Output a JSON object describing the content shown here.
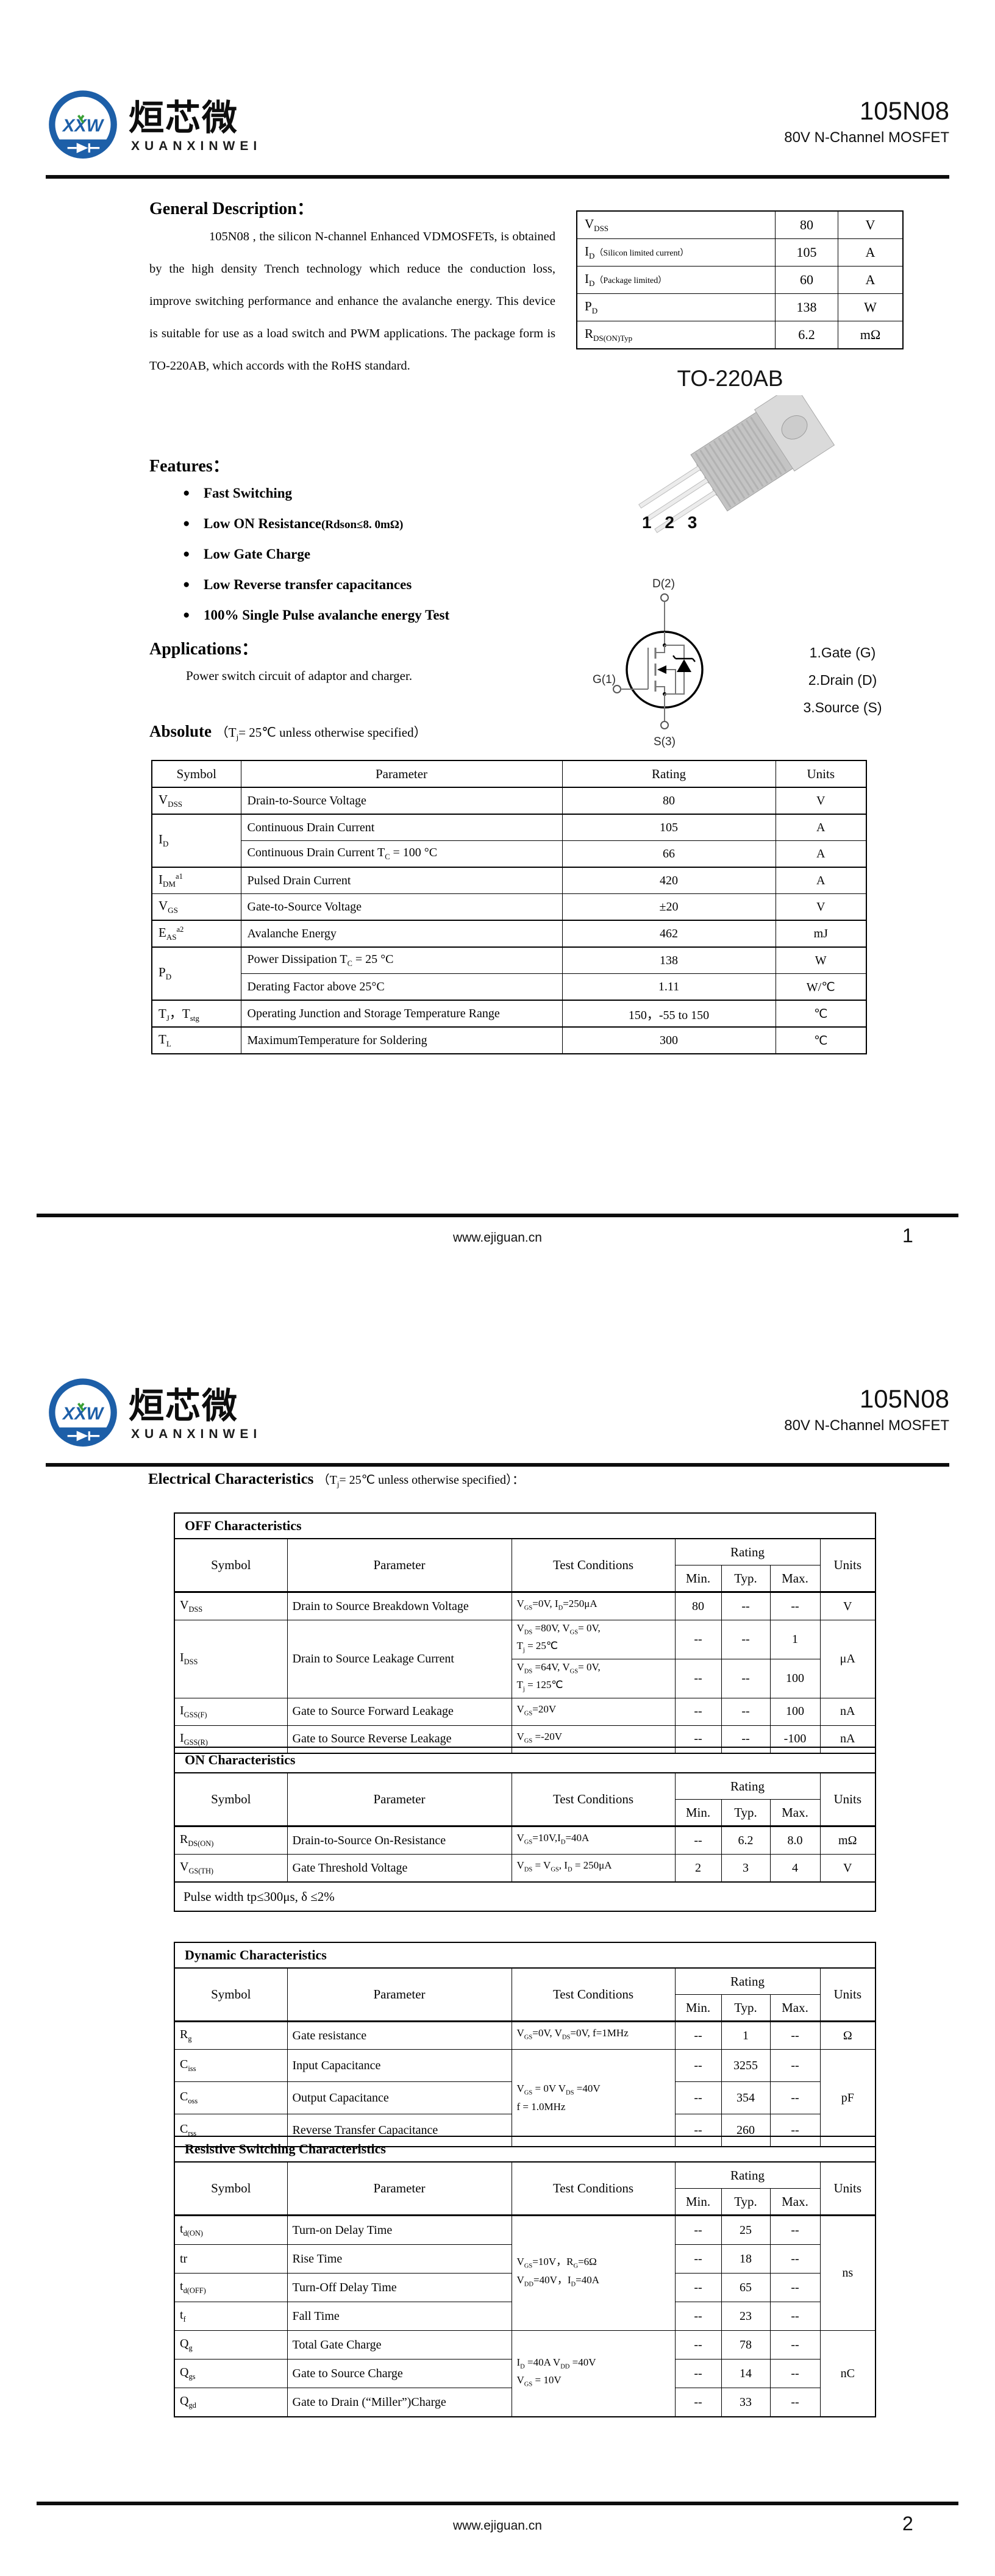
{
  "brand": {
    "monogram": "XXW",
    "name_cn": "烜芯微",
    "name_en": "XUANXINWEI"
  },
  "header": {
    "part_number": "105N08",
    "subtitle": "80V N-Channel MOSFET"
  },
  "footer": {
    "website": "www.ejiguan.cn",
    "page1": "1",
    "page2": "2"
  },
  "page1": {
    "general_description": {
      "title": "General Description：",
      "body": "105N08 , the silicon N-channel Enhanced VDMOSFETs, is obtained by the high density Trench technology which reduce the conduction loss, improve switching performance and enhance the avalanche energy. This device is suitable for use as a load switch and PWM applications. The package form is TO-220AB, which accords with the RoHS standard."
    },
    "features": {
      "title": "Features：",
      "bullet": "●",
      "items": [
        {
          "label": "Fast Switching",
          "note": ""
        },
        {
          "label": "Low ON Resistance",
          "note": "(Rdson≤8. 0mΩ)"
        },
        {
          "label": "Low Gate Charge",
          "note": ""
        },
        {
          "label": "Low Reverse transfer capacitances",
          "note": ""
        },
        {
          "label": "100% Single Pulse avalanche energy Test",
          "note": ""
        }
      ]
    },
    "applications": {
      "title": "Applications：",
      "body": "Power switch circuit of adaptor and charger."
    },
    "absolute_title": {
      "bold": "Absolute",
      "cond": [
        {
          "t": "（T"
        },
        {
          "s": "j"
        },
        {
          "t": "= 25℃  unless otherwise specified）"
        }
      ]
    },
    "summary_table": {
      "rows": [
        {
          "param": [
            {
              "t": "V"
            },
            {
              "s": "DSS"
            }
          ],
          "value": "80",
          "unit": "V"
        },
        {
          "param": [
            {
              "t": "I"
            },
            {
              "s": "D"
            },
            {
              "q": "（Silicon limited current）"
            }
          ],
          "value": "105",
          "unit": "A"
        },
        {
          "param": [
            {
              "t": "I"
            },
            {
              "s": "D"
            },
            {
              "q": "（Package limited）"
            }
          ],
          "value": "60",
          "unit": "A"
        },
        {
          "param": [
            {
              "t": "P"
            },
            {
              "s": "D"
            }
          ],
          "value": "138",
          "unit": "W"
        },
        {
          "param": [
            {
              "t": "R"
            },
            {
              "s": "DS(ON)Typ"
            }
          ],
          "value": "6.2",
          "unit": "mΩ"
        }
      ]
    },
    "package": {
      "name": "TO-220AB",
      "pins": "1 2 3"
    },
    "symbol_diagram": {
      "drain": "D(2)",
      "gate": "G(1)",
      "source": "S(3)",
      "legend": [
        "1.Gate (G)",
        "2.Drain (D)",
        "3.Source (S)"
      ]
    },
    "absolute_table": {
      "headers": {
        "symbol": "Symbol",
        "parameter": "Parameter",
        "rating": "Rating",
        "units": "Units"
      },
      "rows": [
        {
          "sym": [
            {
              "t": "V"
            },
            {
              "s": "DSS"
            }
          ],
          "param": [
            {
              "t": "Drain-to-Source Voltage"
            }
          ],
          "rating": "80",
          "units": "V"
        },
        {
          "sym": [
            {
              "t": "I"
            },
            {
              "s": "D"
            }
          ],
          "param": [
            {
              "t": "Continuous Drain Current"
            }
          ],
          "rating": "105",
          "units": "A"
        },
        {
          "param": [
            {
              "t": "Continuous Drain Current T"
            },
            {
              "s": "C"
            },
            {
              "t": " = 100 °C"
            }
          ],
          "rating": "66",
          "units": "A"
        },
        {
          "sym": [
            {
              "t": "I"
            },
            {
              "s": "DM"
            },
            {
              "p": "a1"
            }
          ],
          "param": [
            {
              "t": "Pulsed Drain Current"
            }
          ],
          "rating": "420",
          "units": "A"
        },
        {
          "sym": [
            {
              "t": "V"
            },
            {
              "s": "GS"
            }
          ],
          "param": [
            {
              "t": "Gate-to-Source Voltage"
            }
          ],
          "rating": "±20",
          "units": "V"
        },
        {
          "sym": [
            {
              "t": "E"
            },
            {
              "s": "AS"
            },
            {
              "p": "a2"
            }
          ],
          "param": [
            {
              "t": "Avalanche Energy"
            }
          ],
          "rating": "462",
          "units": "mJ"
        },
        {
          "sym": [
            {
              "t": "P"
            },
            {
              "s": "D"
            }
          ],
          "param": [
            {
              "t": "Power Dissipation T"
            },
            {
              "s": "C"
            },
            {
              "t": " = 25 °C"
            }
          ],
          "rating": "138",
          "units": "W"
        },
        {
          "param": [
            {
              "t": "Derating Factor above 25°C"
            }
          ],
          "rating": "1.11",
          "units": "W/℃"
        },
        {
          "sym": [
            {
              "t": "T"
            },
            {
              "s": "J"
            },
            {
              "t": "，T"
            },
            {
              "s": "stg"
            }
          ],
          "param": [
            {
              "t": "Operating Junction and Storage Temperature Range"
            }
          ],
          "rating": "150，-55 to 150",
          "units": "℃"
        },
        {
          "sym": [
            {
              "t": "T"
            },
            {
              "s": "L"
            }
          ],
          "param": [
            {
              "t": "MaximumTemperature for Soldering"
            }
          ],
          "rating": "300",
          "units": "℃"
        }
      ]
    }
  },
  "page2": {
    "ec_title": {
      "bold": "Electrical Characteristics",
      "cond": [
        {
          "t": "（T"
        },
        {
          "s": "j"
        },
        {
          "t": "= 25℃ unless otherwise specified）："
        }
      ]
    },
    "cols": {
      "symbol": "Symbol",
      "parameter": "Parameter",
      "test": "Test Conditions",
      "rating": "Rating",
      "min": "Min.",
      "typ": "Typ.",
      "max": "Max.",
      "units": "Units"
    },
    "off": {
      "title": "OFF Characteristics",
      "rows": [
        {
          "sym": [
            {
              "t": "V"
            },
            {
              "s": "DSS"
            }
          ],
          "param": "Drain to Source Breakdown Voltage",
          "cond": [
            {
              "t": "V"
            },
            {
              "s": "GS"
            },
            {
              "t": "=0V, I"
            },
            {
              "s": "D"
            },
            {
              "t": "=250μA"
            }
          ],
          "min": "80",
          "typ": "--",
          "max": "--",
          "units": "V"
        },
        {
          "sym": [
            {
              "t": "I"
            },
            {
              "s": "DSS"
            }
          ],
          "param": "Drain to Source Leakage Current",
          "cond": [
            {
              "t": "V"
            },
            {
              "s": "DS"
            },
            {
              "t": " =80V, V"
            },
            {
              "s": "GS"
            },
            {
              "t": "= 0V,"
            },
            {
              "br": true
            },
            {
              "t": "T"
            },
            {
              "s": "j"
            },
            {
              "t": " = 25℃"
            }
          ],
          "min": "--",
          "typ": "--",
          "max": "1",
          "units": "μA"
        },
        {
          "cond": [
            {
              "t": "V"
            },
            {
              "s": "DS"
            },
            {
              "t": " =64V, V"
            },
            {
              "s": "GS"
            },
            {
              "t": "= 0V,"
            },
            {
              "br": true
            },
            {
              "t": "T"
            },
            {
              "s": "j"
            },
            {
              "t": " = 125℃"
            }
          ],
          "min": "--",
          "typ": "--",
          "max": "100"
        },
        {
          "sym": [
            {
              "t": "I"
            },
            {
              "s": "GSS(F)"
            }
          ],
          "param": "Gate to Source Forward Leakage",
          "cond": [
            {
              "t": "V"
            },
            {
              "s": "GS"
            },
            {
              "t": "=20V"
            }
          ],
          "min": "--",
          "typ": "--",
          "max": "100",
          "units": "nA"
        },
        {
          "sym": [
            {
              "t": "I"
            },
            {
              "s": "GSS(R)"
            }
          ],
          "param": "Gate to Source Reverse Leakage",
          "cond": [
            {
              "t": "V"
            },
            {
              "s": "GS"
            },
            {
              "t": " =-20V"
            }
          ],
          "min": "--",
          "typ": "--",
          "max": "-100",
          "units": "nA"
        }
      ]
    },
    "on": {
      "title": "ON Characteristics",
      "rows": [
        {
          "sym": [
            {
              "t": "R"
            },
            {
              "s": "DS(ON)"
            }
          ],
          "param": "Drain-to-Source On-Resistance",
          "cond": [
            {
              "t": "V"
            },
            {
              "s": "GS"
            },
            {
              "t": "=10V,I"
            },
            {
              "s": "D"
            },
            {
              "t": "=40A"
            }
          ],
          "min": "--",
          "typ": "6.2",
          "max": "8.0",
          "units": "mΩ"
        },
        {
          "sym": [
            {
              "t": "V"
            },
            {
              "s": "GS(TH)"
            }
          ],
          "param": "Gate Threshold Voltage",
          "cond": [
            {
              "t": "V"
            },
            {
              "s": "DS"
            },
            {
              "t": " = V"
            },
            {
              "s": "GS"
            },
            {
              "t": ", I"
            },
            {
              "s": "D"
            },
            {
              "t": " = 250μA"
            }
          ],
          "min": "2",
          "typ": "3",
          "max": "4",
          "units": "V"
        }
      ],
      "note": "Pulse width tp≤300μs, δ ≤2%"
    },
    "dynamic": {
      "title": "Dynamic Characteristics",
      "rows": [
        {
          "sym": [
            {
              "t": "R"
            },
            {
              "s": "g"
            }
          ],
          "param": "Gate resistance",
          "cond": [
            {
              "t": "V"
            },
            {
              "s": "GS"
            },
            {
              "t": "=0V, V"
            },
            {
              "s": "DS"
            },
            {
              "t": "=0V, f=1MHz"
            }
          ],
          "min": "--",
          "typ": "1",
          "max": "--",
          "units": "Ω"
        },
        {
          "sym": [
            {
              "t": "C"
            },
            {
              "s": "iss"
            }
          ],
          "param": "Input Capacitance",
          "cond": [
            {
              "t": "V"
            },
            {
              "s": "GS"
            },
            {
              "t": " = 0V V"
            },
            {
              "s": "DS"
            },
            {
              "t": " =40V"
            },
            {
              "br": true
            },
            {
              "t": "f = 1.0MHz"
            }
          ],
          "min": "--",
          "typ": "3255",
          "max": "--",
          "units": "pF"
        },
        {
          "sym": [
            {
              "t": "C"
            },
            {
              "s": "oss"
            }
          ],
          "param": "Output Capacitance",
          "min": "--",
          "typ": "354",
          "max": "--"
        },
        {
          "sym": [
            {
              "t": "C"
            },
            {
              "s": "rss"
            }
          ],
          "param": "Reverse Transfer Capacitance",
          "min": "--",
          "typ": "260",
          "max": "--"
        }
      ]
    },
    "switching": {
      "title": "Resistive Switching Characteristics",
      "rows": [
        {
          "sym": [
            {
              "t": "t"
            },
            {
              "s": "d(ON)"
            }
          ],
          "param": "Turn-on Delay Time",
          "cond": [
            {
              "t": "V"
            },
            {
              "s": "GS"
            },
            {
              "t": "=10V，R"
            },
            {
              "s": "G"
            },
            {
              "t": "=6Ω"
            },
            {
              "br": true
            },
            {
              "t": "V"
            },
            {
              "s": "DD"
            },
            {
              "t": "=40V，I"
            },
            {
              "s": "D"
            },
            {
              "t": "=40A"
            }
          ],
          "min": "--",
          "typ": "25",
          "max": "--",
          "units": "ns"
        },
        {
          "sym": [
            {
              "t": "tr"
            }
          ],
          "param": "Rise Time",
          "min": "--",
          "typ": "18",
          "max": "--"
        },
        {
          "sym": [
            {
              "t": "t"
            },
            {
              "s": "d(OFF)"
            }
          ],
          "param": "Turn-Off Delay Time",
          "min": "--",
          "typ": "65",
          "max": "--"
        },
        {
          "sym": [
            {
              "t": "t"
            },
            {
              "s": "f"
            }
          ],
          "param": "Fall Time",
          "min": "--",
          "typ": "23",
          "max": "--"
        },
        {
          "sym": [
            {
              "t": "Q"
            },
            {
              "s": "g"
            }
          ],
          "param": "Total Gate Charge",
          "cond": [
            {
              "t": "I"
            },
            {
              "s": "D"
            },
            {
              "t": " =40A  V"
            },
            {
              "s": "DD"
            },
            {
              "t": " =40V"
            },
            {
              "br": true
            },
            {
              "t": "V"
            },
            {
              "s": "GS"
            },
            {
              "t": " = 10V"
            }
          ],
          "min": "--",
          "typ": "78",
          "max": "--",
          "units": "nC"
        },
        {
          "sym": [
            {
              "t": "Q"
            },
            {
              "s": "gs"
            }
          ],
          "param": "Gate to Source Charge",
          "min": "--",
          "typ": "14",
          "max": "--"
        },
        {
          "sym": [
            {
              "t": "Q"
            },
            {
              "s": "gd"
            }
          ],
          "param": "Gate to Drain (“Miller”)Charge",
          "min": "--",
          "typ": "33",
          "max": "--"
        }
      ]
    }
  }
}
